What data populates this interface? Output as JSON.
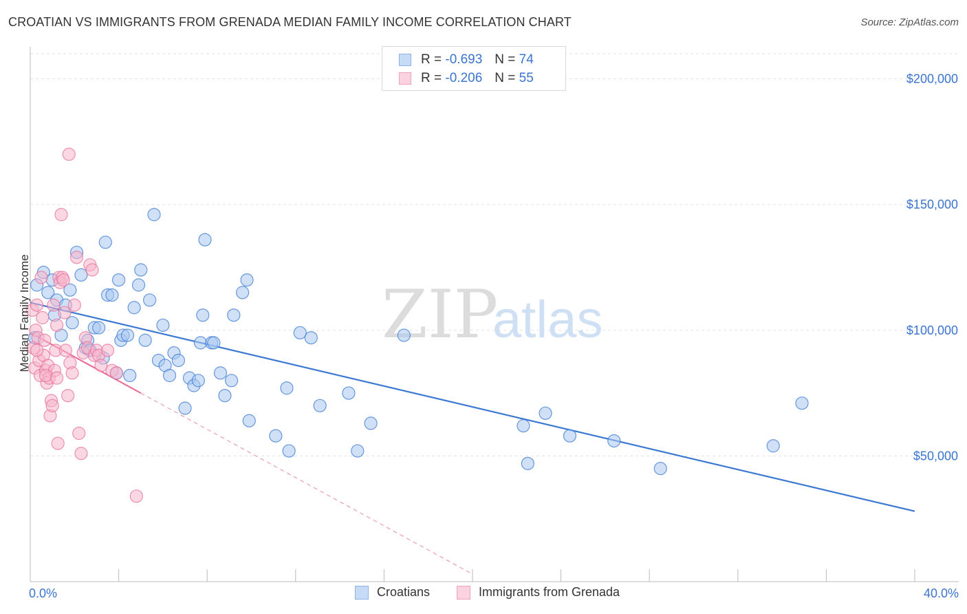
{
  "title": "CROATIAN VS IMMIGRANTS FROM GRENADA MEDIAN FAMILY INCOME CORRELATION CHART",
  "source": "Source: ZipAtlas.com",
  "watermark": {
    "zip": "ZIP",
    "atlas": "atlas"
  },
  "legend": {
    "rows": [
      {
        "r_label": "R =",
        "r_value": "-0.693",
        "n_label": "N =",
        "n_value": "74",
        "color": "#a9c8f0"
      },
      {
        "r_label": "R =",
        "r_value": "-0.206",
        "n_label": "N =",
        "n_value": "55",
        "color": "#f6b7cc"
      }
    ]
  },
  "bottom_legend": {
    "croatians": "Croatians",
    "grenada": "Immigrants from Grenada"
  },
  "axis": {
    "ylabel": "Median Family Income",
    "x_min_label": "0.0%",
    "x_max_label": "40.0%"
  },
  "colors": {
    "blue": "#3a78d4",
    "blue_fill": "#a9c8f0",
    "pink": "#e8709a",
    "pink_fill": "#f6b7cc",
    "tick_text": "#3b74d0"
  },
  "chart_data": {
    "type": "scatter",
    "title": "CROATIAN VS IMMIGRANTS FROM GRENADA MEDIAN FAMILY INCOME CORRELATION CHART",
    "xlabel": "",
    "ylabel": "Median Family Income",
    "xlim": [
      0,
      40
    ],
    "ylim": [
      0,
      210000
    ],
    "y_ticks": [
      {
        "value": 50000,
        "label": "$50,000"
      },
      {
        "value": 100000,
        "label": "$100,000"
      },
      {
        "value": 150000,
        "label": "$150,000"
      },
      {
        "value": 200000,
        "label": "$200,000"
      }
    ],
    "x_ticks": [
      {
        "value": 0,
        "label": "0.0%"
      },
      {
        "value": 40,
        "label": "40.0%"
      }
    ],
    "grid": true,
    "series": [
      {
        "name": "Croatians",
        "color": "#3a78d4",
        "trend": {
          "x0": 0,
          "y0": 111000,
          "x1": 40,
          "y1": 28000
        },
        "points": [
          [
            0.3,
            118000
          ],
          [
            0.6,
            123000
          ],
          [
            0.8,
            115000
          ],
          [
            1.0,
            120000
          ],
          [
            1.2,
            112000
          ],
          [
            1.4,
            98000
          ],
          [
            1.6,
            110000
          ],
          [
            1.8,
            116000
          ],
          [
            1.9,
            103000
          ],
          [
            2.1,
            131000
          ],
          [
            2.3,
            122000
          ],
          [
            2.5,
            93000
          ],
          [
            2.6,
            96000
          ],
          [
            2.7,
            92000
          ],
          [
            2.9,
            101000
          ],
          [
            3.1,
            101000
          ],
          [
            3.3,
            89000
          ],
          [
            3.4,
            135000
          ],
          [
            3.5,
            114000
          ],
          [
            3.7,
            114000
          ],
          [
            3.9,
            83000
          ],
          [
            4.1,
            96000
          ],
          [
            4.2,
            98000
          ],
          [
            4.4,
            98000
          ],
          [
            4.5,
            82000
          ],
          [
            4.7,
            109000
          ],
          [
            4.9,
            118000
          ],
          [
            5.0,
            124000
          ],
          [
            5.2,
            96000
          ],
          [
            5.4,
            112000
          ],
          [
            5.6,
            146000
          ],
          [
            5.8,
            88000
          ],
          [
            6.0,
            102000
          ],
          [
            6.1,
            86000
          ],
          [
            6.3,
            82000
          ],
          [
            6.5,
            91000
          ],
          [
            6.7,
            88000
          ],
          [
            7.0,
            69000
          ],
          [
            7.2,
            81000
          ],
          [
            7.4,
            78000
          ],
          [
            7.6,
            80000
          ],
          [
            7.7,
            95000
          ],
          [
            7.8,
            106000
          ],
          [
            7.9,
            136000
          ],
          [
            8.2,
            95000
          ],
          [
            8.3,
            95000
          ],
          [
            8.6,
            83000
          ],
          [
            8.8,
            74000
          ],
          [
            9.1,
            80000
          ],
          [
            9.2,
            106000
          ],
          [
            9.6,
            115000
          ],
          [
            9.8,
            120000
          ],
          [
            9.9,
            64000
          ],
          [
            11.1,
            58000
          ],
          [
            11.6,
            77000
          ],
          [
            11.7,
            52000
          ],
          [
            12.2,
            99000
          ],
          [
            12.7,
            97000
          ],
          [
            13.1,
            70000
          ],
          [
            14.4,
            75000
          ],
          [
            14.8,
            52000
          ],
          [
            15.4,
            63000
          ],
          [
            16.9,
            98000
          ],
          [
            22.3,
            62000
          ],
          [
            22.5,
            47000
          ],
          [
            23.3,
            67000
          ],
          [
            24.4,
            58000
          ],
          [
            26.4,
            56000
          ],
          [
            28.5,
            45000
          ],
          [
            33.6,
            54000
          ],
          [
            34.9,
            71000
          ],
          [
            0.2,
            97000
          ],
          [
            1.1,
            106000
          ],
          [
            4.0,
            120000
          ]
        ]
      },
      {
        "name": "Immigrants from Grenada",
        "color": "#e8709a",
        "trend": {
          "x0": 0,
          "y0": 99000,
          "x1": 5.0,
          "y1": 75000,
          "dash_to": {
            "x": 20.0,
            "y": 3000
          }
        },
        "points": [
          [
            0.1,
            108000
          ],
          [
            0.15,
            93000
          ],
          [
            0.2,
            85000
          ],
          [
            0.25,
            100000
          ],
          [
            0.3,
            110000
          ],
          [
            0.35,
            97000
          ],
          [
            0.4,
            88000
          ],
          [
            0.45,
            82000
          ],
          [
            0.5,
            121000
          ],
          [
            0.55,
            105000
          ],
          [
            0.6,
            90000
          ],
          [
            0.65,
            96000
          ],
          [
            0.7,
            84000
          ],
          [
            0.75,
            79000
          ],
          [
            0.8,
            86000
          ],
          [
            0.85,
            81000
          ],
          [
            0.9,
            66000
          ],
          [
            0.95,
            72000
          ],
          [
            1.0,
            70000
          ],
          [
            1.05,
            110000
          ],
          [
            1.1,
            84000
          ],
          [
            1.15,
            92000
          ],
          [
            1.2,
            102000
          ],
          [
            1.25,
            55000
          ],
          [
            1.3,
            121000
          ],
          [
            1.35,
            119000
          ],
          [
            1.4,
            146000
          ],
          [
            1.45,
            121000
          ],
          [
            1.5,
            120000
          ],
          [
            1.55,
            107000
          ],
          [
            1.6,
            92000
          ],
          [
            1.7,
            74000
          ],
          [
            1.75,
            170000
          ],
          [
            1.8,
            87000
          ],
          [
            1.9,
            83000
          ],
          [
            2.0,
            110000
          ],
          [
            2.1,
            129000
          ],
          [
            2.2,
            59000
          ],
          [
            2.3,
            51000
          ],
          [
            2.4,
            91000
          ],
          [
            2.5,
            97000
          ],
          [
            2.6,
            93000
          ],
          [
            2.7,
            126000
          ],
          [
            2.8,
            124000
          ],
          [
            2.9,
            90000
          ],
          [
            3.0,
            92000
          ],
          [
            3.1,
            90000
          ],
          [
            3.2,
            86000
          ],
          [
            3.5,
            92000
          ],
          [
            3.7,
            84000
          ],
          [
            3.9,
            83000
          ],
          [
            4.8,
            34000
          ],
          [
            0.3,
            92000
          ],
          [
            0.7,
            82000
          ],
          [
            1.2,
            81000
          ]
        ]
      }
    ]
  }
}
